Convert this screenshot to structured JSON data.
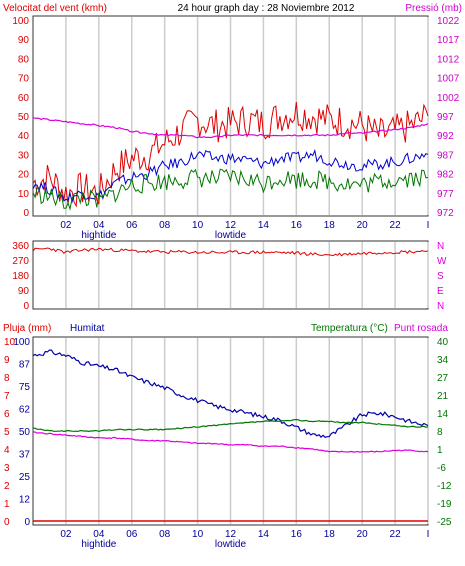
{
  "header": {
    "title": "24 hour graph day : 28 Noviembre 2012",
    "left_label": "Velocitat del vent (kmh)",
    "right_label": "Pressió (mb)"
  },
  "x_axis": {
    "ticks": [
      "02",
      "04",
      "06",
      "08",
      "10",
      "12",
      "14",
      "16",
      "18",
      "20",
      "22",
      "I"
    ],
    "markers": [
      {
        "at": "04",
        "label": "hightide"
      },
      {
        "at": "12",
        "label": "lowtide"
      }
    ]
  },
  "panel_wind": {
    "left_ticks": [
      "100",
      "90",
      "80",
      "70",
      "60",
      "50",
      "40",
      "30",
      "20",
      "10",
      "0"
    ],
    "right_ticks": [
      "1022",
      "1017",
      "1012",
      "1007",
      "1002",
      "997",
      "992",
      "987",
      "982",
      "977",
      "972"
    ],
    "colors": {
      "gust": "#dd0000",
      "avg": "#0000cc",
      "min": "#007700",
      "pressure": "#dd00dd"
    }
  },
  "panel_dir": {
    "left_ticks": [
      "360",
      "270",
      "180",
      "90",
      "0"
    ],
    "right_ticks": [
      "N",
      "W",
      "S",
      "E",
      "N"
    ],
    "color": "#dd0000"
  },
  "panel_hum": {
    "left_label": "Pluja (mm)",
    "left_label2": "Humitat",
    "right_label": "Temperatura (°C)",
    "right_label2": "Punt rosada",
    "rain_ticks": [
      "10",
      "9",
      "8",
      "7",
      "6",
      "5",
      "4",
      "3",
      "2",
      "1",
      "0"
    ],
    "hum_ticks": [
      "100",
      "87",
      "75",
      "62",
      "50",
      "37",
      "25",
      "12",
      "0"
    ],
    "right_ticks": [
      "40",
      "34",
      "27",
      "21",
      "14",
      "8",
      "1",
      "-6",
      "-12",
      "-19",
      "-25"
    ],
    "colors": {
      "humidity": "#0000aa",
      "temperature": "#007700",
      "dewpoint": "#dd00dd",
      "rain": "#dd0000"
    }
  },
  "chart_data": [
    {
      "type": "line",
      "title": "24 hour graph day : 28 Noviembre 2012",
      "x": [
        0,
        1,
        2,
        3,
        4,
        5,
        6,
        7,
        8,
        9,
        10,
        11,
        12,
        13,
        14,
        15,
        16,
        17,
        18,
        19,
        20,
        21,
        22,
        23,
        24
      ],
      "series": [
        {
          "name": "Velocitat del vent (kmh)",
          "axis": "left",
          "values": [
            15,
            18,
            10,
            12,
            10,
            22,
            28,
            30,
            36,
            42,
            48,
            45,
            46,
            48,
            46,
            50,
            52,
            50,
            48,
            47,
            45,
            40,
            42,
            45,
            50
          ]
        },
        {
          "name": "",
          "axis": "left",
          "values": [
            15,
            12,
            7,
            10,
            8,
            15,
            18,
            20,
            24,
            26,
            30,
            28,
            28,
            27,
            25,
            28,
            28,
            30,
            27,
            25,
            24,
            25,
            26,
            28,
            30
          ]
        },
        {
          "name": "",
          "axis": "left",
          "values": [
            10,
            8,
            5,
            8,
            5,
            10,
            14,
            15,
            16,
            17,
            18,
            17,
            18,
            17,
            15,
            18,
            17,
            17,
            16,
            15,
            14,
            16,
            17,
            18,
            18
          ]
        },
        {
          "name": "Pressió (mb)",
          "axis": "right",
          "values": [
            996.5,
            996,
            995.5,
            995,
            994.5,
            994,
            993,
            992.5,
            992,
            992,
            991.5,
            991.5,
            992,
            992,
            992,
            992,
            992,
            992,
            992,
            992.5,
            992.5,
            993,
            993.5,
            994,
            995
          ]
        }
      ],
      "ylim": [
        0,
        100
      ],
      "y2lim": [
        972,
        1022
      ]
    },
    {
      "type": "line",
      "series": [
        {
          "name": "",
          "values": [
            330,
            340,
            315,
            330,
            335,
            330,
            325,
            320,
            318,
            318,
            316,
            315,
            315,
            316,
            317,
            315,
            312,
            305,
            300,
            305,
            310,
            315,
            318,
            320,
            325
          ]
        }
      ],
      "ylim": [
        0,
        360
      ]
    },
    {
      "type": "line",
      "series": [
        {
          "name": "Humitat",
          "axis": "hum",
          "values": [
            92,
            94,
            92,
            88,
            86,
            84,
            80,
            77,
            74,
            70,
            67,
            64,
            62,
            60,
            58,
            56,
            52,
            48,
            47,
            53,
            59,
            60,
            58,
            55,
            53
          ]
        },
        {
          "name": "Temperatura (°C)",
          "axis": "right",
          "values": [
            8.5,
            7.5,
            7.5,
            7.5,
            7.5,
            8,
            8,
            8,
            8,
            8.5,
            9,
            9.5,
            10,
            10.5,
            11,
            11,
            11.5,
            11,
            11,
            10.5,
            10.5,
            10,
            9.5,
            9,
            9
          ]
        },
        {
          "name": "Punt rosada",
          "axis": "right",
          "values": [
            7,
            6.5,
            6,
            5.5,
            5,
            5,
            4.5,
            4,
            4,
            3.5,
            3,
            3,
            2.5,
            2.5,
            2,
            2,
            1.5,
            1,
            0,
            0,
            0,
            0,
            0.5,
            0.5,
            0
          ]
        },
        {
          "name": "Pluja (mm)",
          "axis": "rain",
          "values": [
            0,
            0,
            0,
            0,
            0,
            0,
            0,
            0,
            0,
            0,
            0,
            0,
            0,
            0,
            0,
            0,
            0,
            0,
            0,
            0,
            0,
            0,
            0,
            0,
            0
          ]
        }
      ],
      "rain_lim": [
        0,
        10
      ],
      "hum_lim": [
        0,
        100
      ],
      "right_lim": [
        -25,
        40
      ]
    }
  ]
}
